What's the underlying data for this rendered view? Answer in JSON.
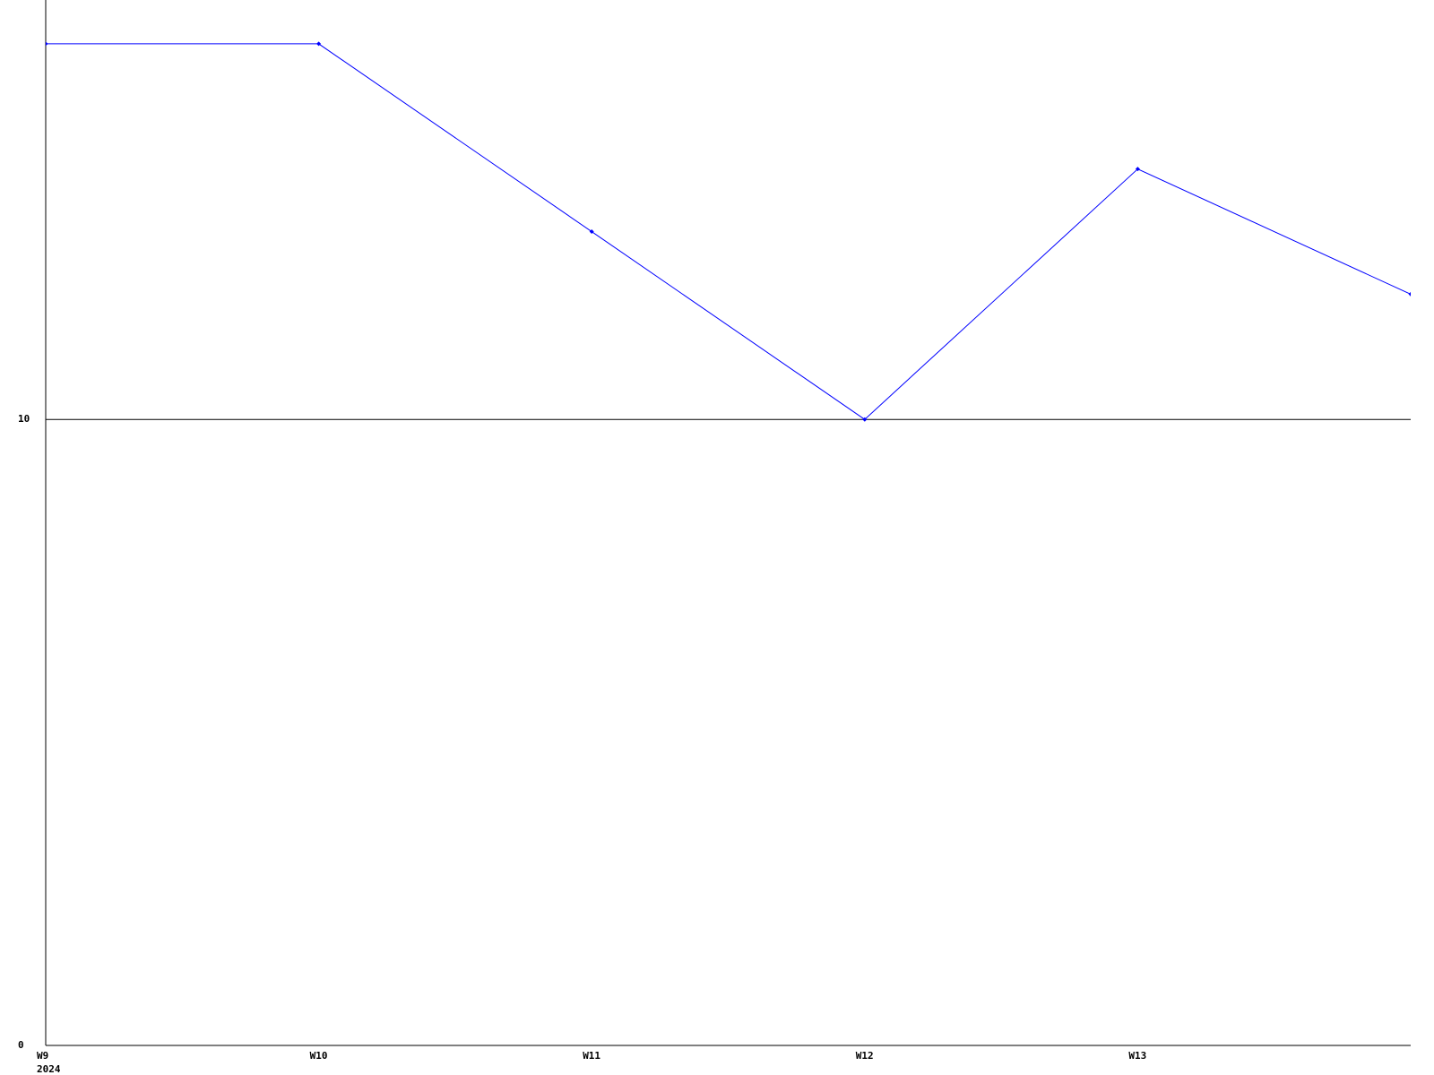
{
  "chart_data": {
    "type": "line",
    "categories": [
      "W9",
      "W10",
      "W11",
      "W12",
      "W13",
      null
    ],
    "x_sublabel": "2024",
    "series": [
      {
        "color": "#0000ff",
        "values": [
          16,
          16,
          13,
          10,
          14,
          12
        ]
      }
    ],
    "ylim": [
      0,
      16.7
    ],
    "yticks": [
      0,
      10
    ],
    "grid": true
  }
}
